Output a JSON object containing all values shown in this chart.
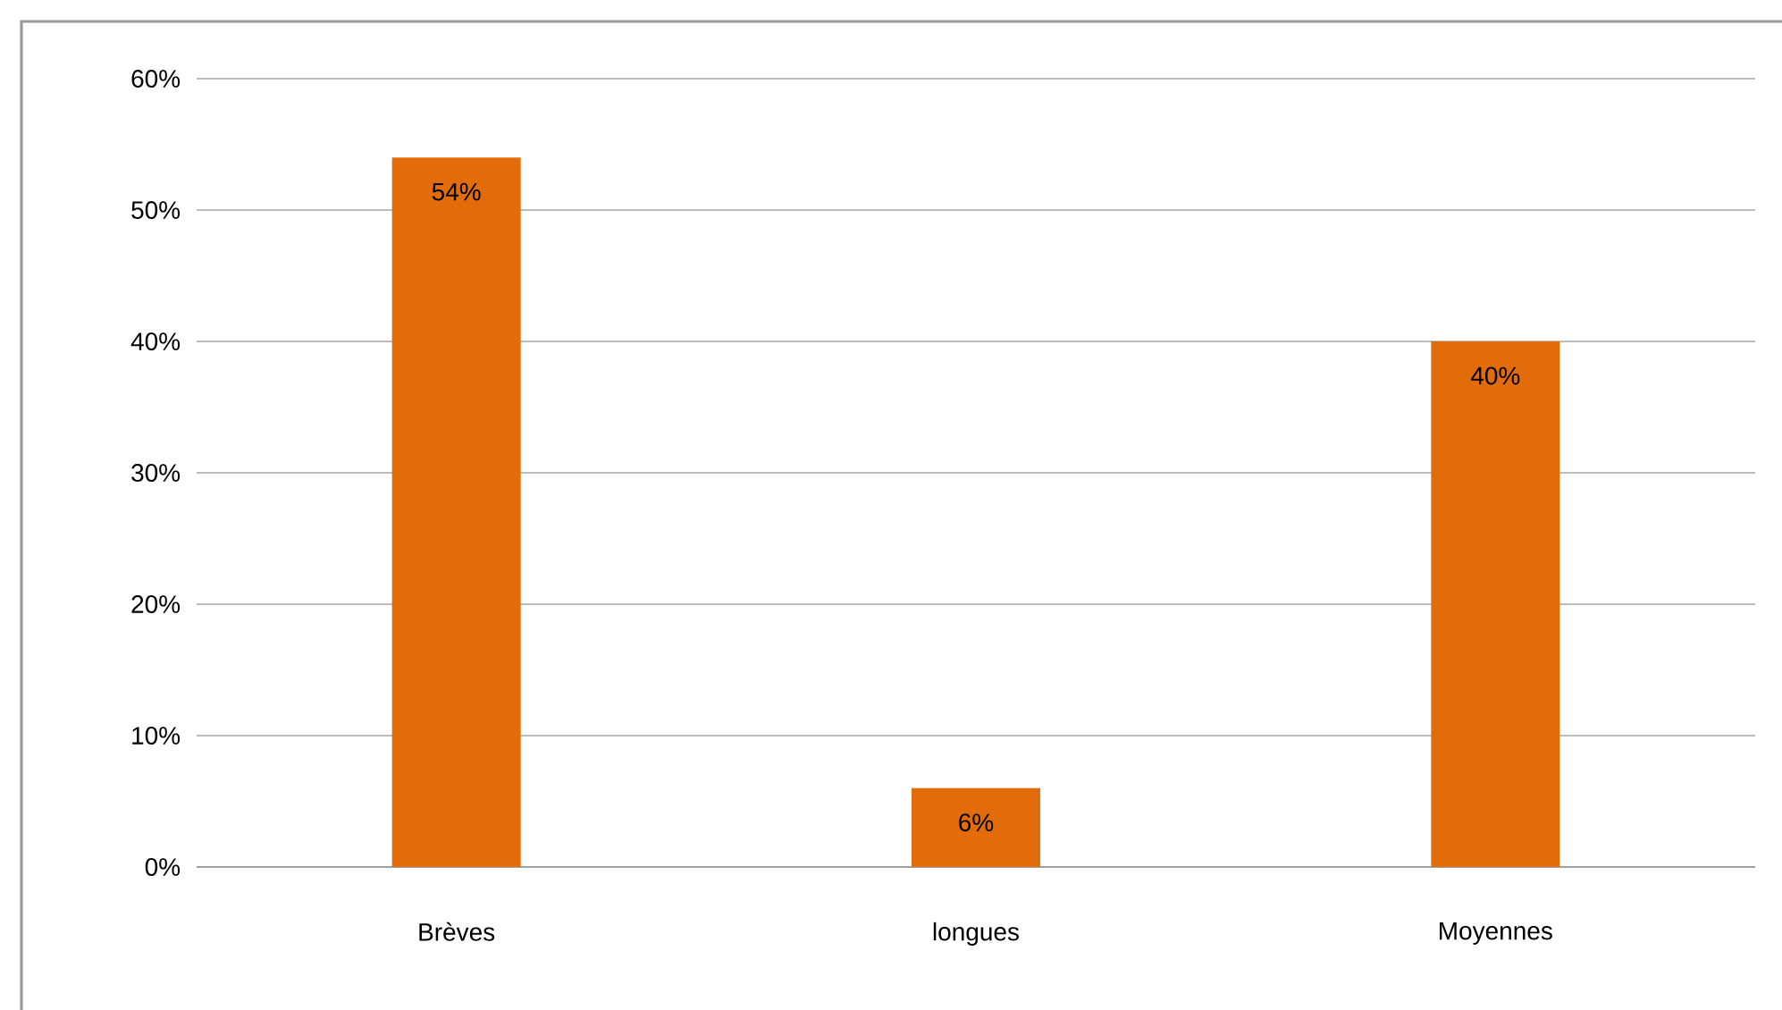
{
  "chart_data": {
    "type": "bar",
    "categories": [
      "Brèves",
      "longues",
      "Moyennes"
    ],
    "values": [
      54,
      6,
      40
    ],
    "value_labels": [
      "54%",
      "6%",
      "40%"
    ],
    "color": "#e36c0a",
    "ylim": [
      0,
      60
    ],
    "yticks": [
      {
        "value": 0,
        "label": "0%"
      },
      {
        "value": 10,
        "label": "10%"
      },
      {
        "value": 20,
        "label": "20%"
      },
      {
        "value": 30,
        "label": "30%"
      },
      {
        "value": 40,
        "label": "40%"
      },
      {
        "value": 50,
        "label": "50%"
      },
      {
        "value": 60,
        "label": "60%"
      }
    ],
    "grid": "y"
  }
}
